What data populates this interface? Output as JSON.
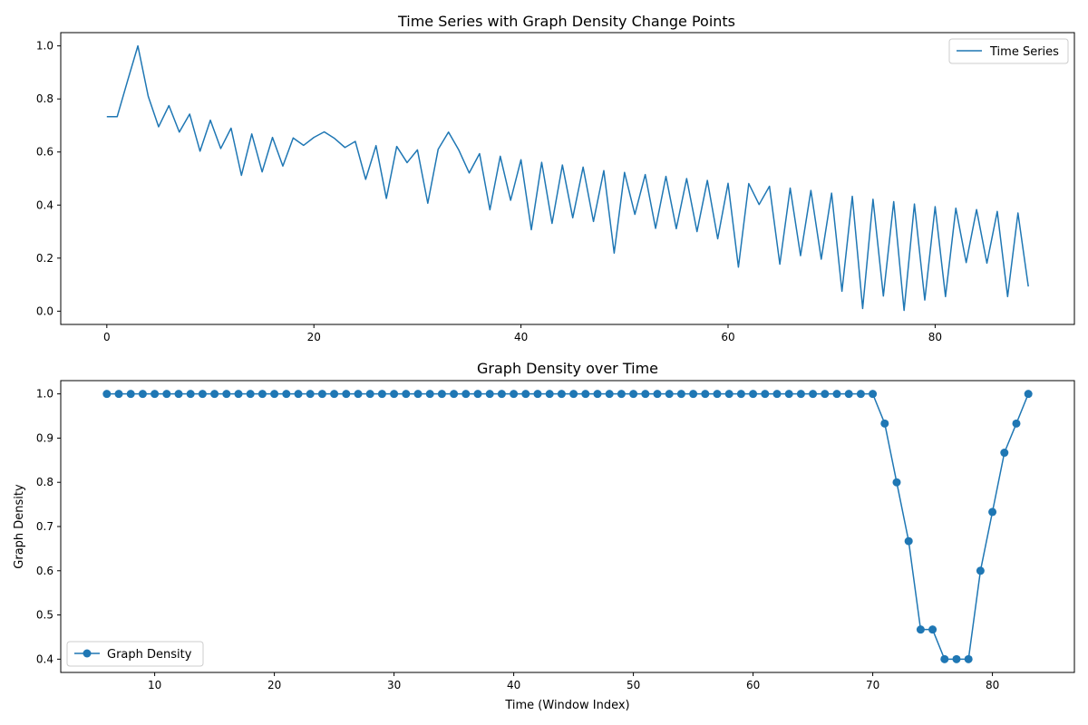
{
  "chart_data": [
    {
      "type": "line",
      "title": "Time Series with Graph Density Change Points",
      "xlabel": "",
      "ylabel": "",
      "xlim": [
        -4.45,
        93.45
      ],
      "ylim": [
        -0.05,
        1.05
      ],
      "xticks": [
        0,
        20,
        40,
        60,
        80
      ],
      "yticks": [
        0.0,
        0.2,
        0.4,
        0.6,
        0.8,
        1.0
      ],
      "xtick_labels": [
        "0",
        "20",
        "40",
        "60",
        "80"
      ],
      "ytick_labels": [
        "0.0",
        "0.2",
        "0.4",
        "0.6",
        "0.8",
        "1.0"
      ],
      "grid": false,
      "legend": "top-right",
      "color": "#1f77b4",
      "series": [
        {
          "name": "Time Series",
          "marker": "none",
          "x": [
            0,
            1,
            2,
            3,
            4,
            5,
            6,
            7,
            8,
            9,
            10,
            11,
            12,
            13,
            14,
            15,
            16,
            17,
            18,
            19,
            20,
            21,
            22,
            23,
            24,
            25,
            26,
            27,
            28,
            29,
            30,
            31,
            32,
            33,
            34,
            35,
            36,
            37,
            38,
            39,
            40,
            41,
            42,
            43,
            44,
            45,
            46,
            47,
            48,
            49,
            50,
            51,
            52,
            53,
            54,
            55,
            56,
            57,
            58,
            59,
            60,
            61,
            62,
            63,
            64,
            65,
            66,
            67,
            68,
            69,
            70,
            71,
            72,
            73,
            74,
            75,
            76,
            77,
            78,
            79,
            80,
            81,
            82,
            83,
            84,
            85,
            86,
            87,
            88,
            89
          ],
          "values": [
            0.733,
            0.733,
            0.868,
            1.0,
            0.81,
            0.695,
            0.775,
            0.675,
            0.743,
            0.603,
            0.72,
            0.613,
            0.69,
            0.512,
            0.668,
            0.525,
            0.655,
            0.547,
            0.653,
            0.625,
            0.655,
            0.676,
            0.651,
            0.617,
            0.64,
            0.497,
            0.624,
            0.425,
            0.621,
            0.56,
            0.608,
            0.407,
            0.61,
            0.675,
            0.607,
            0.521,
            0.594,
            0.382,
            0.584,
            0.418,
            0.571,
            0.307,
            0.561,
            0.331,
            0.551,
            0.352,
            0.543,
            0.338,
            0.53,
            0.219,
            0.523,
            0.365,
            0.515,
            0.312,
            0.508,
            0.311,
            0.5,
            0.3,
            0.493,
            0.273,
            0.482,
            0.166,
            0.481,
            0.402,
            0.471,
            0.177,
            0.464,
            0.209,
            0.455,
            0.196,
            0.445,
            0.075,
            0.433,
            0.01,
            0.422,
            0.057,
            0.413,
            0.003,
            0.404,
            0.042,
            0.394,
            0.055,
            0.388,
            0.183,
            0.383,
            0.181,
            0.376,
            0.055,
            0.37,
            0.093
          ]
        }
      ]
    },
    {
      "type": "line",
      "title": "Graph Density over Time",
      "xlabel": "Time (Window Index)",
      "ylabel": "Graph Density",
      "xlim": [
        2.15,
        86.85
      ],
      "ylim": [
        0.37,
        1.03
      ],
      "xticks": [
        10,
        20,
        30,
        40,
        50,
        60,
        70,
        80
      ],
      "yticks": [
        0.4,
        0.5,
        0.6,
        0.7,
        0.8,
        0.9,
        1.0
      ],
      "xtick_labels": [
        "10",
        "20",
        "30",
        "40",
        "50",
        "60",
        "70",
        "80"
      ],
      "ytick_labels": [
        "0.4",
        "0.5",
        "0.6",
        "0.7",
        "0.8",
        "0.9",
        "1.0"
      ],
      "grid": false,
      "legend": "bottom-left",
      "color": "#1f77b4",
      "series": [
        {
          "name": "Graph Density",
          "marker": "circle",
          "x": [
            6,
            7,
            8,
            9,
            10,
            11,
            12,
            13,
            14,
            15,
            16,
            17,
            18,
            19,
            20,
            21,
            22,
            23,
            24,
            25,
            26,
            27,
            28,
            29,
            30,
            31,
            32,
            33,
            34,
            35,
            36,
            37,
            38,
            39,
            40,
            41,
            42,
            43,
            44,
            45,
            46,
            47,
            48,
            49,
            50,
            51,
            52,
            53,
            54,
            55,
            56,
            57,
            58,
            59,
            60,
            61,
            62,
            63,
            64,
            65,
            66,
            67,
            68,
            69,
            70,
            71,
            72,
            73,
            74,
            75,
            76,
            77,
            78,
            79,
            80,
            81,
            82,
            83
          ],
          "values": [
            1.0,
            1.0,
            1.0,
            1.0,
            1.0,
            1.0,
            1.0,
            1.0,
            1.0,
            1.0,
            1.0,
            1.0,
            1.0,
            1.0,
            1.0,
            1.0,
            1.0,
            1.0,
            1.0,
            1.0,
            1.0,
            1.0,
            1.0,
            1.0,
            1.0,
            1.0,
            1.0,
            1.0,
            1.0,
            1.0,
            1.0,
            1.0,
            1.0,
            1.0,
            1.0,
            1.0,
            1.0,
            1.0,
            1.0,
            1.0,
            1.0,
            1.0,
            1.0,
            1.0,
            1.0,
            1.0,
            1.0,
            1.0,
            1.0,
            1.0,
            1.0,
            1.0,
            1.0,
            1.0,
            1.0,
            1.0,
            1.0,
            1.0,
            1.0,
            1.0,
            1.0,
            1.0,
            1.0,
            1.0,
            1.0,
            0.933,
            0.8,
            0.667,
            0.467,
            0.467,
            0.4,
            0.4,
            0.4,
            0.6,
            0.733,
            0.867,
            0.933,
            1.0
          ]
        }
      ]
    }
  ]
}
